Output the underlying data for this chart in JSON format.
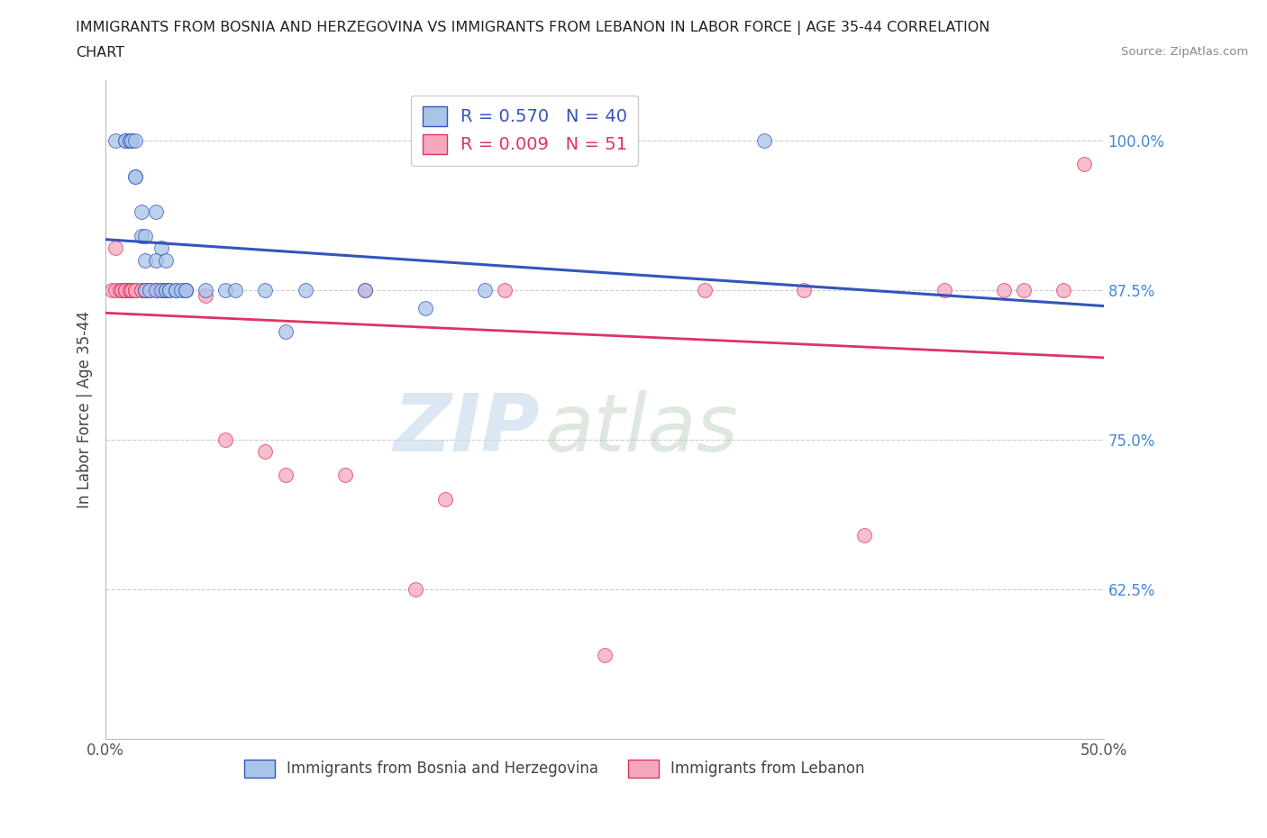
{
  "title_line1": "IMMIGRANTS FROM BOSNIA AND HERZEGOVINA VS IMMIGRANTS FROM LEBANON IN LABOR FORCE | AGE 35-44 CORRELATION",
  "title_line2": "CHART",
  "source_text": "Source: ZipAtlas.com",
  "ylabel": "In Labor Force | Age 35-44",
  "xlim": [
    0.0,
    0.5
  ],
  "ylim": [
    0.5,
    1.05
  ],
  "yticks": [
    0.625,
    0.75,
    0.875,
    1.0
  ],
  "ytick_labels": [
    "62.5%",
    "75.0%",
    "87.5%",
    "100.0%"
  ],
  "xticks": [
    0.0,
    0.125,
    0.25,
    0.375,
    0.5
  ],
  "xtick_labels": [
    "0.0%",
    "",
    "",
    "",
    "50.0%"
  ],
  "background_color": "#ffffff",
  "grid_color": "#cccccc",
  "bosnia_color": "#aac4e8",
  "lebanon_color": "#f5a8bc",
  "bosnia_line_color": "#3355bb",
  "lebanon_line_color": "#dd3366",
  "legend_R_bosnia": "R = 0.570   N = 40",
  "legend_R_lebanon": "R = 0.009   N = 51",
  "watermark_1": "ZIP",
  "watermark_2": "atlas",
  "bosnia_x": [
    0.005,
    0.01,
    0.01,
    0.012,
    0.012,
    0.013,
    0.015,
    0.015,
    0.015,
    0.018,
    0.018,
    0.02,
    0.02,
    0.02,
    0.022,
    0.025,
    0.025,
    0.025,
    0.028,
    0.028,
    0.03,
    0.03,
    0.03,
    0.032,
    0.032,
    0.035,
    0.035,
    0.038,
    0.04,
    0.04,
    0.05,
    0.06,
    0.065,
    0.08,
    0.09,
    0.1,
    0.13,
    0.16,
    0.19,
    0.33
  ],
  "bosnia_y": [
    1.0,
    1.0,
    1.0,
    1.0,
    1.0,
    1.0,
    0.97,
    0.97,
    1.0,
    0.94,
    0.92,
    0.92,
    0.9,
    0.875,
    0.875,
    0.94,
    0.9,
    0.875,
    0.91,
    0.875,
    0.875,
    0.9,
    0.875,
    0.875,
    0.875,
    0.875,
    0.875,
    0.875,
    0.875,
    0.875,
    0.875,
    0.875,
    0.875,
    0.875,
    0.84,
    0.875,
    0.875,
    0.86,
    0.875,
    1.0
  ],
  "lebanon_x": [
    0.003,
    0.005,
    0.005,
    0.007,
    0.008,
    0.008,
    0.01,
    0.01,
    0.01,
    0.01,
    0.012,
    0.012,
    0.012,
    0.013,
    0.013,
    0.015,
    0.015,
    0.015,
    0.015,
    0.018,
    0.018,
    0.02,
    0.02,
    0.02,
    0.022,
    0.022,
    0.025,
    0.025,
    0.028,
    0.028,
    0.03,
    0.03,
    0.04,
    0.05,
    0.06,
    0.08,
    0.09,
    0.12,
    0.13,
    0.155,
    0.17,
    0.2,
    0.25,
    0.3,
    0.35,
    0.38,
    0.42,
    0.45,
    0.46,
    0.48,
    0.49
  ],
  "lebanon_y": [
    0.875,
    0.91,
    0.875,
    0.875,
    0.875,
    0.875,
    0.875,
    0.875,
    0.875,
    0.875,
    0.875,
    0.875,
    0.875,
    0.875,
    0.875,
    0.875,
    0.875,
    0.875,
    0.875,
    0.875,
    0.875,
    0.875,
    0.875,
    0.875,
    0.875,
    0.875,
    0.875,
    0.875,
    0.875,
    0.875,
    0.875,
    0.875,
    0.875,
    0.87,
    0.75,
    0.74,
    0.72,
    0.72,
    0.875,
    0.625,
    0.7,
    0.875,
    0.57,
    0.875,
    0.875,
    0.67,
    0.875,
    0.875,
    0.875,
    0.875,
    0.98
  ]
}
